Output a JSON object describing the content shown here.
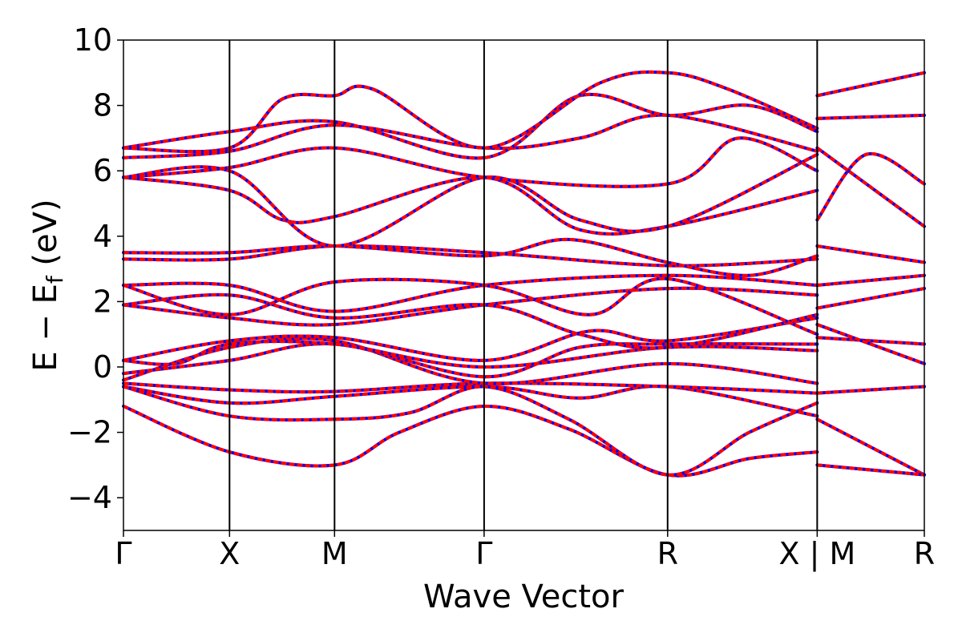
{
  "chart_data": {
    "type": "line",
    "xlabel": "Wave Vector",
    "ylabel": "E − E",
    "ylabel_sub": "f",
    "ylabel_unit": " (eV)",
    "ylim": [
      -5,
      10
    ],
    "yticks": [
      {
        "value": -4,
        "label": "−4"
      },
      {
        "value": -2,
        "label": "−2"
      },
      {
        "value": 0,
        "label": "0"
      },
      {
        "value": 2,
        "label": "2"
      },
      {
        "value": 4,
        "label": "4"
      },
      {
        "value": 6,
        "label": "6"
      },
      {
        "value": 8,
        "label": "8"
      },
      {
        "value": 10,
        "label": "10"
      }
    ],
    "xlim": [
      0,
      7.55
    ],
    "kpoints": [
      {
        "x": 0.0,
        "label": "Γ"
      },
      {
        "x": 1.0,
        "label": "X"
      },
      {
        "x": 1.99,
        "label": "M"
      },
      {
        "x": 3.4,
        "label": "Γ"
      },
      {
        "x": 5.13,
        "label": "R"
      },
      {
        "x": 6.54,
        "label": "X | M"
      },
      {
        "x": 7.55,
        "label": "R"
      }
    ],
    "grid": false,
    "colors": {
      "primary": "#ff0000",
      "overlay": "#0000ff"
    },
    "bands": [
      [
        [
          0,
          -1.2
        ],
        [
          1,
          -2.6
        ],
        [
          1.99,
          -3.0
        ],
        [
          2.6,
          -2.0
        ],
        [
          3.4,
          -1.2
        ],
        [
          4.2,
          -1.9
        ],
        [
          5.13,
          -3.3
        ],
        [
          5.9,
          -2.8
        ],
        [
          6.54,
          -2.6
        ]
      ],
      [
        [
          0,
          -0.6
        ],
        [
          1,
          -1.5
        ],
        [
          1.99,
          -1.6
        ],
        [
          2.7,
          -1.4
        ],
        [
          3.4,
          -0.6
        ],
        [
          4.2,
          -1.6
        ],
        [
          5.13,
          -3.3
        ],
        [
          5.9,
          -2.0
        ],
        [
          6.54,
          -1.1
        ]
      ],
      [
        [
          0,
          -0.6
        ],
        [
          1,
          -1.1
        ],
        [
          1.99,
          -0.9
        ],
        [
          3.4,
          -0.6
        ],
        [
          4.3,
          -0.95
        ],
        [
          5.13,
          -0.6
        ],
        [
          6.54,
          -1.5
        ]
      ],
      [
        [
          0,
          -0.5
        ],
        [
          1,
          -0.7
        ],
        [
          1.99,
          -0.75
        ],
        [
          3.4,
          -0.5
        ],
        [
          5.13,
          -0.6
        ],
        [
          6.54,
          -0.8
        ]
      ],
      [
        [
          0,
          -0.4
        ],
        [
          1,
          0.6
        ],
        [
          1.99,
          0.8
        ],
        [
          3.4,
          -0.5
        ],
        [
          5.13,
          0.1
        ],
        [
          6.54,
          -0.5
        ]
      ],
      [
        [
          0,
          -0.2
        ],
        [
          1,
          0.2
        ],
        [
          1.99,
          0.7
        ],
        [
          3.4,
          -0.3
        ],
        [
          4.3,
          0.6
        ],
        [
          5.13,
          0.7
        ],
        [
          6.54,
          0.7
        ]
      ],
      [
        [
          0,
          0.2
        ],
        [
          1,
          0.8
        ],
        [
          1.99,
          0.9
        ],
        [
          3.4,
          0.2
        ],
        [
          4.4,
          1.1
        ],
        [
          5.13,
          0.8
        ],
        [
          6.54,
          1.5
        ]
      ],
      [
        [
          0,
          0.2
        ],
        [
          0.5,
          0.1
        ],
        [
          1,
          0.7
        ],
        [
          1.99,
          0.7
        ],
        [
          3.4,
          0.0
        ],
        [
          5.13,
          0.6
        ],
        [
          6.54,
          0.5
        ]
      ],
      [
        [
          0,
          1.9
        ],
        [
          1,
          1.5
        ],
        [
          1.99,
          1.3
        ],
        [
          3.4,
          1.9
        ],
        [
          5.13,
          2.4
        ],
        [
          6.54,
          2.2
        ]
      ],
      [
        [
          0,
          1.9
        ],
        [
          1,
          2.2
        ],
        [
          1.99,
          1.5
        ],
        [
          3.4,
          1.9
        ],
        [
          4.3,
          1.0
        ],
        [
          5.13,
          0.6
        ],
        [
          6.54,
          1.6
        ]
      ],
      [
        [
          0,
          2.5
        ],
        [
          1,
          2.5
        ],
        [
          1.99,
          1.7
        ],
        [
          3.4,
          2.5
        ],
        [
          5.13,
          2.8
        ],
        [
          6.54,
          2.5
        ]
      ],
      [
        [
          0,
          2.5
        ],
        [
          1,
          1.6
        ],
        [
          1.99,
          2.6
        ],
        [
          3.4,
          2.5
        ],
        [
          4.4,
          1.6
        ],
        [
          5.13,
          2.7
        ],
        [
          6.54,
          1.0
        ]
      ],
      [
        [
          0,
          3.3
        ],
        [
          1,
          3.3
        ],
        [
          1.99,
          3.7
        ],
        [
          3.4,
          3.5
        ],
        [
          5.13,
          3.1
        ],
        [
          6.54,
          3.3
        ]
      ],
      [
        [
          0,
          3.5
        ],
        [
          1,
          3.5
        ],
        [
          1.99,
          3.7
        ],
        [
          3.4,
          3.4
        ],
        [
          4.2,
          3.9
        ],
        [
          5.13,
          3.2
        ],
        [
          5.9,
          2.8
        ],
        [
          6.54,
          3.4
        ]
      ],
      [
        [
          0,
          5.8
        ],
        [
          1,
          5.4
        ],
        [
          1.5,
          4.5
        ],
        [
          1.99,
          4.6
        ],
        [
          3.4,
          5.8
        ],
        [
          4.3,
          4.2
        ],
        [
          5.13,
          4.3
        ],
        [
          6.54,
          5.4
        ]
      ],
      [
        [
          0,
          5.8
        ],
        [
          1,
          6.0
        ],
        [
          1.99,
          3.7
        ],
        [
          3.4,
          5.8
        ],
        [
          4.3,
          4.5
        ],
        [
          5.13,
          4.3
        ],
        [
          6.54,
          6.5
        ]
      ],
      [
        [
          0,
          5.8
        ],
        [
          1,
          6.1
        ],
        [
          1.99,
          6.7
        ],
        [
          3.4,
          5.8
        ],
        [
          5.13,
          5.6
        ],
        [
          5.8,
          7.0
        ],
        [
          6.54,
          6.0
        ]
      ],
      [
        [
          0,
          6.4
        ],
        [
          1,
          6.6
        ],
        [
          1.99,
          7.4
        ],
        [
          3.4,
          6.7
        ],
        [
          4.3,
          7.0
        ],
        [
          5.13,
          7.7
        ],
        [
          6.54,
          6.6
        ]
      ],
      [
        [
          0,
          6.7
        ],
        [
          1,
          7.2
        ],
        [
          1.99,
          7.5
        ],
        [
          3.4,
          6.4
        ],
        [
          4.3,
          8.3
        ],
        [
          5.13,
          7.7
        ],
        [
          5.9,
          8.0
        ],
        [
          6.54,
          7.2
        ]
      ],
      [
        [
          0,
          6.7
        ],
        [
          1,
          6.7
        ],
        [
          1.5,
          8.2
        ],
        [
          1.99,
          8.3
        ],
        [
          2.35,
          8.5
        ],
        [
          3.4,
          6.7
        ],
        [
          4.5,
          8.7
        ],
        [
          5.13,
          9.0
        ],
        [
          5.7,
          8.5
        ],
        [
          6.54,
          7.3
        ]
      ],
      [
        [
          6.54,
          -1.6
        ],
        [
          7.55,
          -3.3
        ]
      ],
      [
        [
          6.54,
          -3.0
        ],
        [
          7.55,
          -3.3
        ]
      ],
      [
        [
          6.54,
          -0.8
        ],
        [
          7.55,
          -0.6
        ]
      ],
      [
        [
          6.54,
          0.9
        ],
        [
          7.55,
          0.7
        ]
      ],
      [
        [
          6.54,
          1.3
        ],
        [
          7.55,
          0.1
        ]
      ],
      [
        [
          6.54,
          1.8
        ],
        [
          7.55,
          2.4
        ]
      ],
      [
        [
          6.54,
          2.5
        ],
        [
          7.55,
          2.8
        ]
      ],
      [
        [
          6.54,
          3.7
        ],
        [
          7.55,
          3.2
        ]
      ],
      [
        [
          6.54,
          4.5
        ],
        [
          7.0,
          6.5
        ],
        [
          7.55,
          5.6
        ]
      ],
      [
        [
          6.54,
          6.7
        ],
        [
          7.55,
          4.3
        ]
      ],
      [
        [
          6.54,
          7.6
        ],
        [
          7.55,
          7.7
        ]
      ],
      [
        [
          6.54,
          8.3
        ],
        [
          7.55,
          9.0
        ]
      ]
    ]
  }
}
